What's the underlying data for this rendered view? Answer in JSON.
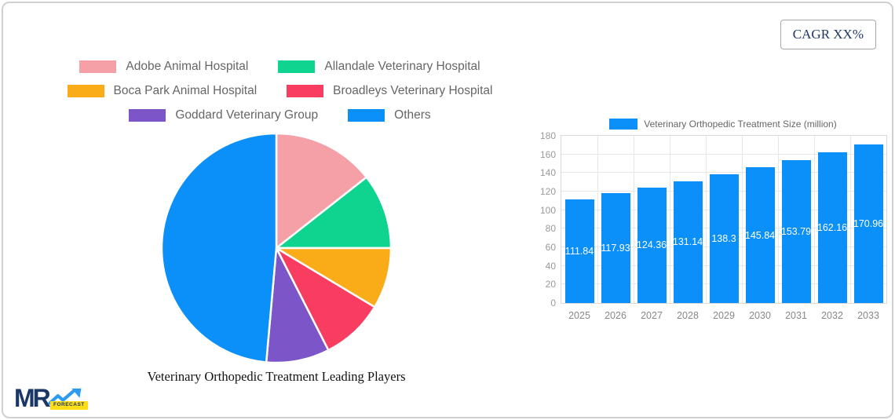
{
  "cagr": {
    "label": "CAGR XX%"
  },
  "logo": {
    "text": "MR",
    "sub": "FORECAST",
    "arrow_color": "#2e9bf3",
    "box_color": "#ffde17",
    "text_color": "#1b3766"
  },
  "chart_data": [
    {
      "type": "pie",
      "title": "Veterinary Orthopedic Treatment Leading Players",
      "legend_position": "top",
      "labels": [
        "Adobe Animal Hospital",
        "Allandale Veterinary Hospital",
        "Boca Park Animal Hospital",
        "Broadleys Veterinary Hospital",
        "Goddard Veterinary Group",
        "Others"
      ],
      "values_percent": [
        14.4,
        10.6,
        8.6,
        8.9,
        8.9,
        48.6
      ],
      "colors": [
        "#f5a0a7",
        "#0ed48f",
        "#faac18",
        "#f93d61",
        "#7c55c8",
        "#0b90fa"
      ],
      "legend_rows": [
        [
          0,
          1
        ],
        [
          2,
          3
        ],
        [
          4,
          5
        ]
      ],
      "start_angle_deg": 0,
      "direction": "clockwise"
    },
    {
      "type": "bar",
      "legend": "Veterinary Orthopedic Treatment Size (million)",
      "categories": [
        "2025",
        "2026",
        "2027",
        "2028",
        "2029",
        "2030",
        "2031",
        "2032",
        "2033"
      ],
      "values": [
        111.84,
        117.93,
        124.36,
        131.14,
        138.3,
        145.84,
        153.79,
        162.16,
        170.96
      ],
      "value_labels": [
        "111.84",
        "117.93",
        "124.36",
        "131.14",
        "138.3",
        "145.84",
        "153.79",
        "162.16",
        "170.96"
      ],
      "bar_color": "#0b90fa",
      "ylim": [
        0,
        180
      ],
      "yticks": [
        0,
        20,
        40,
        60,
        80,
        100,
        120,
        140,
        160,
        180
      ],
      "grid": true,
      "legend_position": "top"
    }
  ]
}
